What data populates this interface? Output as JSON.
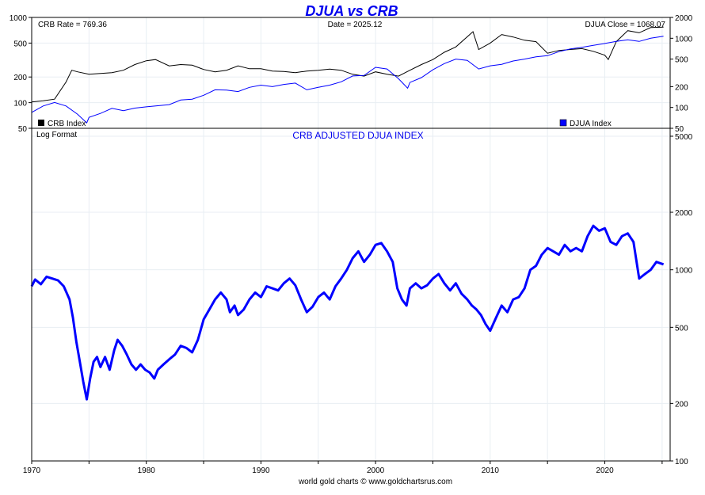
{
  "colors": {
    "crb": "#000000",
    "djua": "#0000ff",
    "title": "#0000ee",
    "frame": "#000000",
    "grid": "#e8eef3"
  },
  "chart_data": [
    {
      "type": "line",
      "title": "DJUA vs CRB",
      "scale": "log",
      "annotations": {
        "left": "CRB Rate = 769.36",
        "center": "Date = 2025.12",
        "right": "DJUA Close = 1068.07"
      },
      "xlim": [
        1970,
        2025.7
      ],
      "x_ticks": [
        "1970",
        "1980",
        "1990",
        "2000",
        "2010",
        "2020"
      ],
      "y_left_ticks": [
        "1000",
        "500",
        "200",
        "100",
        "50"
      ],
      "y_right_ticks": [
        "2000",
        "1000",
        "500",
        "200",
        "100",
        "50"
      ],
      "legend": {
        "crb": "CRB Index",
        "djua": "DJUA Index"
      },
      "series": [
        {
          "name": "CRB Index",
          "axis": "left",
          "ylim": [
            50,
            1000
          ],
          "x": [
            1970,
            1971,
            1972,
            1973,
            1973.5,
            1974,
            1975,
            1976,
            1977,
            1978,
            1979,
            1980,
            1980.8,
            1982,
            1983,
            1984,
            1985,
            1986,
            1987,
            1988,
            1989,
            1990,
            1991,
            1992,
            1993,
            1994,
            1995,
            1996,
            1997,
            1998,
            1999,
            2000,
            2001,
            2002,
            2003,
            2004,
            2005,
            2006,
            2007,
            2008.5,
            2009,
            2010,
            2011,
            2012,
            2013,
            2014,
            2015,
            2016,
            2017,
            2018,
            2019,
            2020,
            2020.3,
            2021,
            2022,
            2023,
            2024,
            2025.12
          ],
          "values": [
            102,
            105,
            110,
            175,
            240,
            230,
            215,
            220,
            225,
            240,
            280,
            310,
            320,
            270,
            280,
            275,
            245,
            230,
            240,
            270,
            250,
            250,
            235,
            232,
            225,
            235,
            240,
            248,
            240,
            215,
            205,
            230,
            215,
            205,
            240,
            280,
            320,
            390,
            450,
            680,
            420,
            500,
            630,
            590,
            540,
            520,
            380,
            410,
            420,
            430,
            400,
            360,
            320,
            520,
            700,
            660,
            760,
            770
          ]
        },
        {
          "name": "DJUA Index",
          "axis": "right",
          "ylim": [
            50,
            2000
          ],
          "x": [
            1970,
            1971,
            1972,
            1973,
            1974,
            1974.8,
            1975,
            1976,
            1977,
            1978,
            1979,
            1980,
            1981,
            1982,
            1983,
            1984,
            1985,
            1986,
            1987,
            1988,
            1989,
            1990,
            1991,
            1992,
            1993,
            1994,
            1995,
            1996,
            1997,
            1998,
            1999,
            2000,
            2001,
            2002,
            2002.8,
            2003,
            2004,
            2005,
            2006,
            2007,
            2008,
            2009,
            2010,
            2011,
            2012,
            2013,
            2014,
            2015,
            2016,
            2017,
            2018,
            2019,
            2020,
            2021,
            2022,
            2023,
            2024,
            2025.12
          ],
          "values": [
            85,
            105,
            118,
            105,
            80,
            60,
            72,
            82,
            97,
            90,
            98,
            102,
            106,
            110,
            128,
            132,
            150,
            180,
            178,
            170,
            195,
            210,
            200,
            215,
            225,
            180,
            195,
            210,
            235,
            285,
            290,
            380,
            360,
            260,
            190,
            230,
            270,
            350,
            430,
            500,
            480,
            360,
            400,
            420,
            470,
            500,
            540,
            560,
            640,
            700,
            740,
            790,
            840,
            900,
            950,
            900,
            1000,
            1068
          ]
        }
      ]
    },
    {
      "type": "line",
      "title": "CRB ADJUSTED DJUA INDEX",
      "note": "Log Format",
      "scale": "log",
      "ylim": [
        100,
        5500
      ],
      "y_right_ticks": [
        "5000",
        "2000",
        "1000",
        "500",
        "200",
        "100"
      ],
      "x_ticks": [
        "1970",
        "1980",
        "1990",
        "2000",
        "2010",
        "2020"
      ],
      "footer": "world gold charts © www.goldchartsrus.com",
      "series": [
        {
          "name": "CRB Adjusted DJUA",
          "x": [
            1970,
            1970.3,
            1970.8,
            1971.3,
            1971.8,
            1972.3,
            1972.8,
            1973.3,
            1973.6,
            1973.9,
            1974.2,
            1974.5,
            1974.8,
            1975.1,
            1975.4,
            1975.7,
            1976,
            1976.4,
            1976.8,
            1977.2,
            1977.5,
            1977.9,
            1978.3,
            1978.7,
            1979.1,
            1979.5,
            1979.9,
            1980.3,
            1980.7,
            1981,
            1981.5,
            1982,
            1982.5,
            1983,
            1983.5,
            1984,
            1984.5,
            1985,
            1985.5,
            1986,
            1986.5,
            1987,
            1987.3,
            1987.7,
            1988,
            1988.5,
            1989,
            1989.5,
            1990,
            1990.5,
            1991,
            1991.5,
            1992,
            1992.5,
            1993,
            1993.5,
            1994,
            1994.5,
            1995,
            1995.5,
            1996,
            1996.5,
            1997,
            1997.5,
            1998,
            1998.5,
            1999,
            1999.5,
            2000,
            2000.5,
            2001,
            2001.5,
            2001.9,
            2002.3,
            2002.7,
            2003,
            2003.5,
            2004,
            2004.5,
            2005,
            2005.5,
            2006,
            2006.5,
            2007,
            2007.5,
            2008,
            2008.4,
            2008.8,
            2009.2,
            2009.6,
            2010,
            2010.5,
            2011,
            2011.5,
            2012,
            2012.5,
            2013,
            2013.5,
            2014,
            2014.5,
            2015,
            2015.5,
            2016,
            2016.5,
            2017,
            2017.5,
            2018,
            2018.5,
            2019,
            2019.5,
            2020,
            2020.5,
            2021,
            2021.5,
            2022,
            2022.5,
            2023,
            2023.5,
            2024,
            2024.5,
            2025.12
          ],
          "values": [
            820,
            890,
            840,
            920,
            900,
            880,
            820,
            700,
            560,
            420,
            330,
            260,
            210,
            270,
            330,
            350,
            310,
            350,
            300,
            380,
            430,
            400,
            360,
            320,
            300,
            320,
            300,
            290,
            270,
            300,
            320,
            340,
            360,
            400,
            390,
            370,
            430,
            550,
            620,
            700,
            760,
            700,
            600,
            650,
            580,
            620,
            700,
            760,
            720,
            820,
            800,
            780,
            850,
            900,
            830,
            700,
            600,
            640,
            720,
            760,
            700,
            820,
            900,
            1000,
            1150,
            1250,
            1100,
            1200,
            1350,
            1380,
            1250,
            1100,
            800,
            700,
            650,
            800,
            850,
            800,
            830,
            900,
            950,
            850,
            780,
            850,
            750,
            700,
            650,
            620,
            580,
            520,
            480,
            560,
            650,
            600,
            700,
            720,
            800,
            1000,
            1050,
            1200,
            1300,
            1250,
            1200,
            1350,
            1250,
            1300,
            1250,
            1500,
            1700,
            1600,
            1650,
            1400,
            1350,
            1500,
            1550,
            1400,
            900,
            950,
            1000,
            1100,
            1068
          ]
        }
      ]
    }
  ]
}
